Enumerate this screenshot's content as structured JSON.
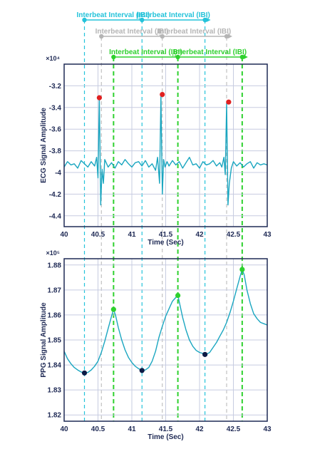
{
  "colors": {
    "ecg_line": "#1aa6c0",
    "ppg_line": "#1aa6c0",
    "frame": "#1f2a55",
    "grid": "#c7cce0",
    "green": "#2ed12e",
    "cyan": "#24c3da",
    "gray": "#b5b5b5",
    "text": "#1f2a55",
    "r_peak": "#e02020",
    "ppg_max": "#2ed12e",
    "ppg_min": "#0d1b45"
  },
  "annotations": {
    "cyan_row": {
      "left_label": "Interbeat Interval (IBI)",
      "left_sub": "i-1",
      "right_label": "Interbeat Interval (IBI)",
      "right_sub": "i",
      "markers": [
        40.3,
        41.15,
        42.08
      ]
    },
    "gray_row": {
      "left_label": "Interbeat Interval (IBI)",
      "left_sub": "i-1",
      "right_label": "Interbeat Interval (IBI)",
      "right_sub": "i",
      "markers": [
        40.55,
        41.45,
        42.4
      ]
    },
    "green_row": {
      "left_label": "Interbeat Interval (IBI)",
      "left_sub": "i-1",
      "right_label": "Interbeat Interval (IBI)",
      "right_sub": "i",
      "markers": [
        40.73,
        41.68,
        42.63
      ]
    }
  },
  "chart_data": [
    {
      "type": "line",
      "xlabel": "Time (Sec)",
      "ylabel": "ECG Signal Amplitude",
      "exponent_label": "×10⁴",
      "xlim": [
        40,
        43
      ],
      "ylim": [
        -4.5,
        -3.0
      ],
      "xticks": [
        "40",
        "40.5",
        "41",
        "41.5",
        "42",
        "42.5",
        "43"
      ],
      "yticks": [
        "-3.2",
        "-3.4",
        "-3.6",
        "-3.8",
        "-4",
        "-4.2",
        "-4.4"
      ],
      "grid": true,
      "series": [
        {
          "x": [
            40.0,
            40.05,
            40.1,
            40.15,
            40.2,
            40.25,
            40.3,
            40.35,
            40.4,
            40.45,
            40.48,
            40.5,
            40.52,
            40.54,
            40.56,
            40.58,
            40.6,
            40.65,
            40.7,
            40.75,
            40.8,
            40.85,
            40.9,
            40.95,
            41.0,
            41.05,
            41.1,
            41.15,
            41.2,
            41.25,
            41.3,
            41.35,
            41.38,
            41.41,
            41.43,
            41.45,
            41.47,
            41.49,
            41.52,
            41.55,
            41.6,
            41.65,
            41.7,
            41.75,
            41.8,
            41.85,
            41.9,
            41.95,
            42.0,
            42.05,
            42.1,
            42.15,
            42.2,
            42.25,
            42.3,
            42.33,
            42.36,
            42.38,
            42.4,
            42.42,
            42.44,
            42.47,
            42.5,
            42.55,
            42.6,
            42.65,
            42.7,
            42.75,
            42.8,
            42.85,
            42.9,
            42.95,
            43.0
          ],
          "y": [
            -3.95,
            -3.9,
            -3.93,
            -3.92,
            -3.96,
            -3.89,
            -3.92,
            -3.95,
            -3.9,
            -3.94,
            -3.86,
            -4.05,
            -3.32,
            -4.3,
            -3.97,
            -4.1,
            -3.88,
            -3.95,
            -3.91,
            -3.96,
            -3.9,
            -3.93,
            -3.88,
            -3.92,
            -3.95,
            -3.91,
            -3.9,
            -3.94,
            -3.89,
            -3.95,
            -3.92,
            -3.98,
            -3.86,
            -4.1,
            -3.3,
            -4.2,
            -3.88,
            -3.95,
            -3.9,
            -3.94,
            -3.89,
            -3.93,
            -3.9,
            -3.96,
            -3.91,
            -3.86,
            -3.93,
            -3.92,
            -3.96,
            -3.9,
            -3.93,
            -3.92,
            -3.89,
            -3.94,
            -3.91,
            -3.95,
            -3.86,
            -4.02,
            -3.36,
            -4.3,
            -4.1,
            -3.96,
            -3.9,
            -3.94,
            -3.91,
            -3.95,
            -3.92,
            -3.9,
            -3.96,
            -3.91,
            -3.93,
            -3.92,
            -3.93
          ]
        }
      ],
      "markers": [
        {
          "x": 40.52,
          "y": -3.31
        },
        {
          "x": 41.45,
          "y": -3.28
        },
        {
          "x": 42.43,
          "y": -3.35
        }
      ]
    },
    {
      "type": "line",
      "xlabel": "Time (Sec)",
      "ylabel": "PPG Signal Amplitude",
      "exponent_label": "×10⁵",
      "xlim": [
        40,
        43
      ],
      "ylim": [
        1.8175,
        1.8825
      ],
      "xticks": [
        "40",
        "40.5",
        "41",
        "41.5",
        "42",
        "42.5",
        "43"
      ],
      "yticks": [
        "1.88",
        "1.87",
        "1.86",
        "1.85",
        "1.84",
        "1.83",
        "1.82"
      ],
      "grid": true,
      "series": [
        {
          "x": [
            40.0,
            40.05,
            40.1,
            40.15,
            40.2,
            40.25,
            40.3,
            40.35,
            40.4,
            40.45,
            40.5,
            40.55,
            40.6,
            40.65,
            40.7,
            40.73,
            40.76,
            40.8,
            40.85,
            40.9,
            40.95,
            41.0,
            41.05,
            41.1,
            41.15,
            41.2,
            41.25,
            41.3,
            41.35,
            41.4,
            41.45,
            41.5,
            41.55,
            41.6,
            41.65,
            41.68,
            41.71,
            41.75,
            41.8,
            41.85,
            41.9,
            41.95,
            42.0,
            42.05,
            42.1,
            42.15,
            42.2,
            42.25,
            42.3,
            42.35,
            42.4,
            42.45,
            42.5,
            42.55,
            42.6,
            42.63,
            42.66,
            42.7,
            42.75,
            42.8,
            42.85,
            42.9,
            42.95,
            43.0
          ],
          "y": [
            1.8455,
            1.8425,
            1.8405,
            1.839,
            1.838,
            1.8372,
            1.8368,
            1.837,
            1.838,
            1.8395,
            1.8415,
            1.845,
            1.8495,
            1.8545,
            1.8595,
            1.8622,
            1.8598,
            1.855,
            1.85,
            1.846,
            1.843,
            1.841,
            1.8395,
            1.8385,
            1.8378,
            1.838,
            1.839,
            1.8415,
            1.8455,
            1.851,
            1.8555,
            1.8595,
            1.8625,
            1.8655,
            1.867,
            1.8678,
            1.864,
            1.859,
            1.854,
            1.85,
            1.8475,
            1.8458,
            1.845,
            1.8446,
            1.8442,
            1.845,
            1.847,
            1.849,
            1.8515,
            1.854,
            1.857,
            1.861,
            1.8655,
            1.8705,
            1.8755,
            1.8782,
            1.876,
            1.87,
            1.8645,
            1.8605,
            1.8585,
            1.857,
            1.8565,
            1.856
          ]
        }
      ],
      "markers": [
        {
          "x": 40.3,
          "y": 1.8368,
          "kind": "min"
        },
        {
          "x": 40.73,
          "y": 1.8622,
          "kind": "max"
        },
        {
          "x": 41.15,
          "y": 1.8378,
          "kind": "min"
        },
        {
          "x": 41.68,
          "y": 1.8678,
          "kind": "max"
        },
        {
          "x": 42.08,
          "y": 1.8442,
          "kind": "min"
        },
        {
          "x": 42.63,
          "y": 1.8782,
          "kind": "max"
        }
      ]
    }
  ]
}
